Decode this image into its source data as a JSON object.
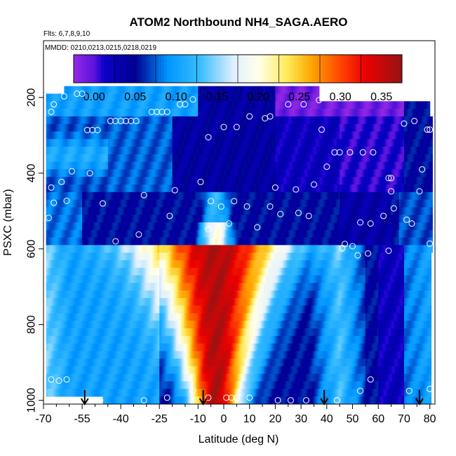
{
  "chart_data": {
    "type": "heatmap",
    "title": "ATOM2 Northbound NH4_SAGA.AERO",
    "flights_note": "Flts: 6,7,8,9,10",
    "dates_note": "MMDD: 0210,0213,0215,0218,0219",
    "xlabel": "Latitude (deg N)",
    "ylabel": "PSXC (mbar)",
    "xlim": [
      -70,
      82
    ],
    "ylim": [
      1010,
      50
    ],
    "y_reversed": true,
    "x_ticks": [
      -70,
      -55,
      -40,
      -25,
      -10,
      0,
      10,
      20,
      30,
      40,
      50,
      60,
      70,
      80
    ],
    "x_tick_labels": [
      "-70",
      "-55",
      "-40",
      "-25",
      "-10",
      "0",
      "10",
      "20",
      "30",
      "40",
      "50",
      "60",
      "70",
      "80"
    ],
    "x_minor_step": 5,
    "y_ticks": [
      200,
      400,
      600,
      800,
      1000
    ],
    "y_tick_labels": [
      "200",
      "400",
      "600",
      "800",
      "1000"
    ],
    "colorbar": {
      "range": [
        -0.025,
        0.375
      ],
      "ticks": [
        0.0,
        0.05,
        0.1,
        0.15,
        0.2,
        0.25,
        0.3,
        0.35
      ],
      "tick_labels": [
        "0.00",
        "0.05",
        "0.10",
        "0.15",
        "0.20",
        "0.25",
        "0.30",
        "0.35"
      ],
      "colors": [
        "#9b30ff",
        "#0000cd",
        "#00008b",
        "#1e90ff",
        "#00bfff",
        "#ffffff",
        "#ffff99",
        "#ffd700",
        "#ff8c00",
        "#ff0000",
        "#b22222"
      ]
    },
    "flight_track_arrows_lat": [
      -54,
      -8,
      39,
      76
    ],
    "samples": [
      {
        "lat": -67,
        "p": 238
      },
      {
        "lat": -66,
        "p": 218
      },
      {
        "lat": -62,
        "p": 197
      },
      {
        "lat": -57,
        "p": 190
      },
      {
        "lat": -55,
        "p": 190
      },
      {
        "lat": -53,
        "p": 286
      },
      {
        "lat": -51,
        "p": 286
      },
      {
        "lat": -49,
        "p": 286
      },
      {
        "lat": -44,
        "p": 262
      },
      {
        "lat": -42,
        "p": 262
      },
      {
        "lat": -40,
        "p": 262
      },
      {
        "lat": -38,
        "p": 262
      },
      {
        "lat": -36,
        "p": 262
      },
      {
        "lat": -34,
        "p": 262
      },
      {
        "lat": -28,
        "p": 238
      },
      {
        "lat": -26,
        "p": 238
      },
      {
        "lat": -24,
        "p": 238
      },
      {
        "lat": -22,
        "p": 238
      },
      {
        "lat": -17,
        "p": 218
      },
      {
        "lat": -15,
        "p": 218
      },
      {
        "lat": -12,
        "p": 205
      },
      {
        "lat": -6,
        "p": 305
      },
      {
        "lat": 0,
        "p": 278
      },
      {
        "lat": 5,
        "p": 278
      },
      {
        "lat": 10,
        "p": 250
      },
      {
        "lat": 16,
        "p": 255
      },
      {
        "lat": 18,
        "p": 250
      },
      {
        "lat": 25,
        "p": 218
      },
      {
        "lat": 31,
        "p": 218
      },
      {
        "lat": 37,
        "p": 207
      },
      {
        "lat": -59,
        "p": 395
      },
      {
        "lat": -52,
        "p": 400
      },
      {
        "lat": -63,
        "p": 423
      },
      {
        "lat": -67,
        "p": 438
      },
      {
        "lat": -31,
        "p": 458
      },
      {
        "lat": -9,
        "p": 423
      },
      {
        "lat": -19,
        "p": 445
      },
      {
        "lat": -66,
        "p": 478
      },
      {
        "lat": -61,
        "p": 473
      },
      {
        "lat": -47,
        "p": 480
      },
      {
        "lat": -68,
        "p": 518
      },
      {
        "lat": -21,
        "p": 513
      },
      {
        "lat": -5,
        "p": 474
      },
      {
        "lat": -1,
        "p": 488
      },
      {
        "lat": 2,
        "p": 533
      },
      {
        "lat": 4,
        "p": 474
      },
      {
        "lat": 9,
        "p": 488
      },
      {
        "lat": 13,
        "p": 543
      },
      {
        "lat": 18,
        "p": 488
      },
      {
        "lat": 20,
        "p": 438
      },
      {
        "lat": 22,
        "p": 508
      },
      {
        "lat": 28,
        "p": 443
      },
      {
        "lat": 29,
        "p": 505
      },
      {
        "lat": 33,
        "p": 513
      },
      {
        "lat": 35,
        "p": 430
      },
      {
        "lat": 38,
        "p": 285
      },
      {
        "lat": 40,
        "p": 383
      },
      {
        "lat": 43,
        "p": 345
      },
      {
        "lat": 45,
        "p": 345
      },
      {
        "lat": 49,
        "p": 345
      },
      {
        "lat": 54,
        "p": 345
      },
      {
        "lat": 58,
        "p": 345
      },
      {
        "lat": 64,
        "p": 413
      },
      {
        "lat": 65,
        "p": 413
      },
      {
        "lat": 65,
        "p": 448
      },
      {
        "lat": 70,
        "p": 269
      },
      {
        "lat": 74,
        "p": 262
      },
      {
        "lat": 77,
        "p": 390
      },
      {
        "lat": 79,
        "p": 285
      },
      {
        "lat": 80,
        "p": 285
      },
      {
        "lat": 76,
        "p": 448
      },
      {
        "lat": 71,
        "p": 523
      },
      {
        "lat": 73,
        "p": 533
      },
      {
        "lat": 66,
        "p": 493
      },
      {
        "lat": 57,
        "p": 533
      },
      {
        "lat": 53,
        "p": 530
      },
      {
        "lat": 62,
        "p": 513
      },
      {
        "lat": -42,
        "p": 580
      },
      {
        "lat": -33,
        "p": 562
      },
      {
        "lat": -6,
        "p": 548
      },
      {
        "lat": -3,
        "p": 578
      },
      {
        "lat": 46,
        "p": 598
      },
      {
        "lat": 47,
        "p": 587
      },
      {
        "lat": 50,
        "p": 593
      },
      {
        "lat": 52,
        "p": 617
      },
      {
        "lat": 56,
        "p": 612
      },
      {
        "lat": 64,
        "p": 605
      },
      {
        "lat": 80,
        "p": 586
      },
      {
        "lat": -67,
        "p": 945
      },
      {
        "lat": -64,
        "p": 948
      },
      {
        "lat": -61,
        "p": 945
      },
      {
        "lat": -48,
        "p": 1000
      },
      {
        "lat": -31,
        "p": 1000
      },
      {
        "lat": -22,
        "p": 993
      },
      {
        "lat": -12,
        "p": 975
      },
      {
        "lat": -6,
        "p": 993
      },
      {
        "lat": 1,
        "p": 993
      },
      {
        "lat": 3,
        "p": 993
      },
      {
        "lat": 5,
        "p": 993
      },
      {
        "lat": 10,
        "p": 993
      },
      {
        "lat": 21,
        "p": 1000
      },
      {
        "lat": 26,
        "p": 1000
      },
      {
        "lat": 32,
        "p": 1000
      },
      {
        "lat": 44,
        "p": 1000
      },
      {
        "lat": 53,
        "p": 975
      },
      {
        "lat": 57,
        "p": 945
      },
      {
        "lat": 72,
        "p": 975
      },
      {
        "lat": 80,
        "p": 970
      }
    ]
  }
}
